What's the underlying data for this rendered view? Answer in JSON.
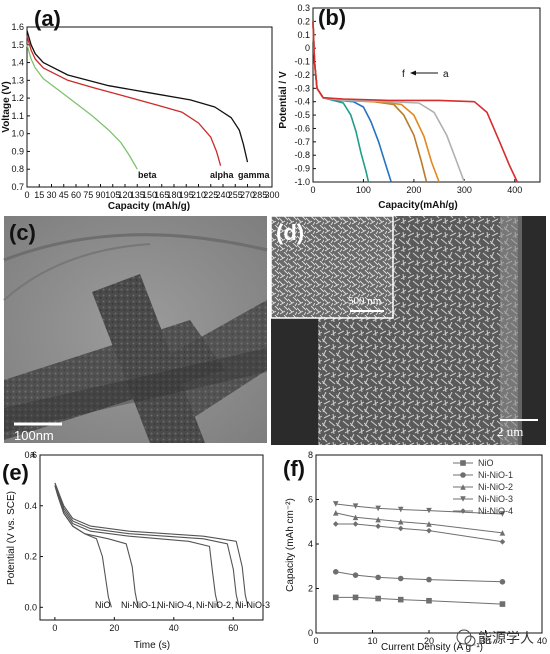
{
  "watermark": "能源学人",
  "panels": {
    "a": {
      "label": "(a)"
    },
    "b": {
      "label": "(b)"
    },
    "c": {
      "label": "(c)",
      "scale_bar": "100nm"
    },
    "d": {
      "label": "(d)",
      "inset_scale_bar": "500 nm",
      "scale_bar": "2 um"
    },
    "e": {
      "label": "(e)",
      "corner_text": "a"
    },
    "f": {
      "label": "(f)"
    }
  },
  "chart_data": [
    {
      "id": "a",
      "type": "line",
      "xlabel": "Capacity (mAh/g)",
      "ylabel": "Voltage (V)",
      "xlim": [
        0,
        300
      ],
      "ylim": [
        0.7,
        1.6
      ],
      "xticks": [
        "0",
        "15",
        "30",
        "45",
        "60",
        "75",
        "90",
        "105",
        "120",
        "135",
        "150",
        "165",
        "180",
        "195",
        "210",
        "225",
        "240",
        "255",
        "270",
        "285",
        "300"
      ],
      "yticks": [
        "0.7",
        "0.8",
        "0.9",
        "1.0",
        "1.1",
        "1.2",
        "1.3",
        "1.4",
        "1.5",
        "1.6"
      ],
      "annotations": [
        "beta",
        "alpha",
        "gamma"
      ],
      "series": [
        {
          "name": "beta",
          "color": "#7cc36b",
          "x": [
            0,
            5,
            10,
            20,
            40,
            60,
            80,
            100,
            115,
            125,
            135
          ],
          "y": [
            1.5,
            1.42,
            1.37,
            1.31,
            1.24,
            1.17,
            1.1,
            1.02,
            0.95,
            0.88,
            0.8
          ]
        },
        {
          "name": "alpha",
          "color": "#cc2a2a",
          "x": [
            0,
            5,
            10,
            20,
            50,
            80,
            120,
            160,
            190,
            210,
            225,
            232,
            237
          ],
          "y": [
            1.55,
            1.47,
            1.42,
            1.37,
            1.3,
            1.26,
            1.21,
            1.16,
            1.12,
            1.06,
            0.98,
            0.9,
            0.82
          ]
        },
        {
          "name": "gamma",
          "color": "#111111",
          "x": [
            0,
            5,
            10,
            20,
            50,
            100,
            150,
            200,
            230,
            250,
            260,
            265,
            270
          ],
          "y": [
            1.58,
            1.5,
            1.45,
            1.4,
            1.33,
            1.27,
            1.23,
            1.19,
            1.15,
            1.09,
            1.02,
            0.94,
            0.84
          ]
        }
      ]
    },
    {
      "id": "b",
      "type": "line",
      "xlabel": "Capacity(mAh/g)",
      "ylabel": "Potential / V",
      "xlim": [
        0,
        450
      ],
      "ylim": [
        -1.0,
        0.3
      ],
      "xticks": [
        "0",
        "100",
        "200",
        "300",
        "400"
      ],
      "yticks": [
        "0.3",
        "0.2",
        "0.1",
        "0",
        "-0.1",
        "-0.2",
        "-0.3",
        "-0.4",
        "-0.5",
        "-0.6",
        "-0.7",
        "-0.8",
        "-0.9",
        "-1.0"
      ],
      "annotation": {
        "left": "f",
        "right": "a"
      },
      "series": [
        {
          "color": "#1e9e8a",
          "x": [
            0,
            3,
            8,
            20,
            40,
            60,
            75,
            85,
            95,
            105,
            110
          ],
          "y": [
            0.2,
            -0.1,
            -0.3,
            -0.37,
            -0.39,
            -0.41,
            -0.5,
            -0.62,
            -0.78,
            -0.92,
            -1.0
          ]
        },
        {
          "color": "#2573c2",
          "x": [
            0,
            3,
            8,
            20,
            50,
            80,
            100,
            115,
            130,
            145,
            155
          ],
          "y": [
            0.2,
            -0.1,
            -0.3,
            -0.37,
            -0.39,
            -0.4,
            -0.44,
            -0.55,
            -0.7,
            -0.88,
            -1.0
          ]
        },
        {
          "color": "#b87a2a",
          "x": [
            0,
            3,
            8,
            20,
            60,
            120,
            160,
            180,
            200,
            215,
            225
          ],
          "y": [
            0.2,
            -0.1,
            -0.3,
            -0.37,
            -0.39,
            -0.4,
            -0.42,
            -0.5,
            -0.65,
            -0.85,
            -1.0
          ]
        },
        {
          "color": "#e0891e",
          "x": [
            0,
            3,
            8,
            20,
            60,
            130,
            175,
            200,
            220,
            235,
            250
          ],
          "y": [
            0.2,
            -0.1,
            -0.3,
            -0.37,
            -0.39,
            -0.4,
            -0.42,
            -0.5,
            -0.66,
            -0.85,
            -1.0
          ]
        },
        {
          "color": "#b0b0b0",
          "x": [
            0,
            3,
            8,
            20,
            60,
            150,
            210,
            240,
            265,
            285,
            300
          ],
          "y": [
            0.2,
            -0.1,
            -0.3,
            -0.37,
            -0.39,
            -0.4,
            -0.41,
            -0.48,
            -0.65,
            -0.85,
            -1.0
          ]
        },
        {
          "color": "#d62e2e",
          "x": [
            0,
            3,
            8,
            20,
            60,
            150,
            250,
            320,
            345,
            370,
            390,
            405
          ],
          "y": [
            0.2,
            -0.1,
            -0.3,
            -0.37,
            -0.38,
            -0.39,
            -0.39,
            -0.4,
            -0.48,
            -0.7,
            -0.88,
            -1.0
          ]
        }
      ]
    },
    {
      "id": "e",
      "type": "line",
      "xlabel": "Time (s)",
      "ylabel": "Potential (V vs. SCE)",
      "xlim": [
        -5,
        70
      ],
      "ylim": [
        -0.05,
        0.6
      ],
      "xticks": [
        "0",
        "20",
        "40",
        "60"
      ],
      "yticks": [
        "0.0",
        "0.2",
        "0.4",
        "0.6"
      ],
      "annotations": [
        "NiO",
        "Ni-NiO-1,",
        "Ni-NiO-4,",
        "Ni-NiO-2,",
        "Ni-NiO-3"
      ],
      "series": [
        {
          "name": "NiO",
          "color": "#555555",
          "x": [
            0,
            1,
            3,
            6,
            10,
            14,
            16,
            17,
            18,
            19
          ],
          "y": [
            0.48,
            0.44,
            0.37,
            0.32,
            0.29,
            0.27,
            0.2,
            0.12,
            0.04,
            0.0
          ]
        },
        {
          "name": "Ni-NiO-1",
          "color": "#555555",
          "x": [
            0,
            1,
            3,
            6,
            10,
            18,
            24,
            26,
            27,
            28
          ],
          "y": [
            0.48,
            0.44,
            0.37,
            0.32,
            0.29,
            0.27,
            0.25,
            0.16,
            0.06,
            0.0
          ]
        },
        {
          "name": "Ni-NiO-4",
          "color": "#555555",
          "x": [
            0,
            1,
            3,
            6,
            12,
            25,
            45,
            52,
            53,
            54,
            55
          ],
          "y": [
            0.48,
            0.45,
            0.38,
            0.33,
            0.3,
            0.28,
            0.26,
            0.24,
            0.14,
            0.05,
            0.0
          ]
        },
        {
          "name": "Ni-NiO-2",
          "color": "#555555",
          "x": [
            0,
            1,
            3,
            6,
            12,
            25,
            50,
            58,
            60,
            61,
            62
          ],
          "y": [
            0.49,
            0.46,
            0.39,
            0.34,
            0.31,
            0.29,
            0.27,
            0.25,
            0.15,
            0.05,
            0.0
          ]
        },
        {
          "name": "Ni-NiO-3",
          "color": "#555555",
          "x": [
            0,
            1,
            3,
            6,
            12,
            25,
            50,
            61,
            63,
            64,
            65
          ],
          "y": [
            0.49,
            0.46,
            0.4,
            0.35,
            0.32,
            0.3,
            0.28,
            0.26,
            0.16,
            0.05,
            0.0
          ]
        }
      ]
    },
    {
      "id": "f",
      "type": "line",
      "xlabel": "Current Density (A g⁻¹)",
      "ylabel": "Capacity (mAh cm⁻²)",
      "xlim": [
        0,
        40
      ],
      "ylim": [
        0,
        8
      ],
      "xticks": [
        "0",
        "10",
        "20",
        "30",
        "40"
      ],
      "yticks": [
        "0",
        "2",
        "4",
        "6",
        "8"
      ],
      "series": [
        {
          "name": "NiO",
          "marker": "square",
          "x": [
            3.5,
            7,
            11,
            15,
            20,
            33
          ],
          "y": [
            1.6,
            1.6,
            1.55,
            1.5,
            1.45,
            1.3
          ]
        },
        {
          "name": "Ni-NiO-1",
          "marker": "circle",
          "x": [
            3.5,
            7,
            11,
            15,
            20,
            33
          ],
          "y": [
            2.75,
            2.6,
            2.5,
            2.45,
            2.4,
            2.3
          ]
        },
        {
          "name": "Ni-NiO-2",
          "marker": "triangle-up",
          "x": [
            3.5,
            7,
            11,
            15,
            20,
            33
          ],
          "y": [
            5.4,
            5.2,
            5.1,
            5.0,
            4.9,
            4.5
          ]
        },
        {
          "name": "Ni-NiO-3",
          "marker": "triangle-down",
          "x": [
            3.5,
            7,
            11,
            15,
            20,
            33
          ],
          "y": [
            5.8,
            5.7,
            5.6,
            5.55,
            5.5,
            5.35
          ]
        },
        {
          "name": "Ni-NiO-4",
          "marker": "diamond",
          "x": [
            3.5,
            7,
            11,
            15,
            20,
            33
          ],
          "y": [
            4.9,
            4.9,
            4.8,
            4.7,
            4.6,
            4.1
          ]
        }
      ]
    }
  ]
}
